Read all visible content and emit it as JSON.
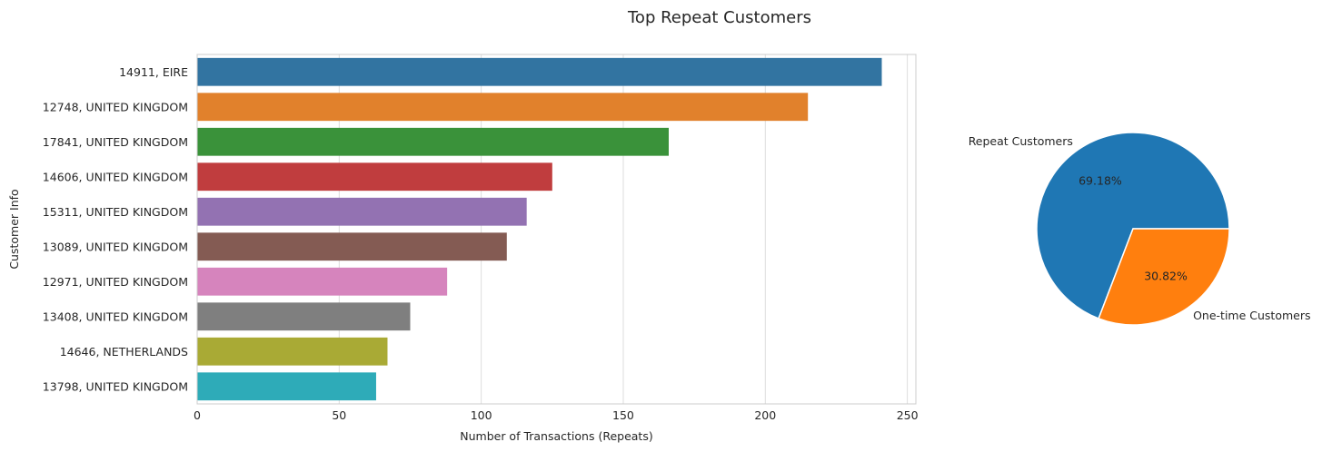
{
  "figure_title": "Top Repeat Customers",
  "chart_data": [
    {
      "type": "bar",
      "orientation": "horizontal",
      "categories": [
        "14911, EIRE",
        "12748, UNITED KINGDOM",
        "17841, UNITED KINGDOM",
        "14606, UNITED KINGDOM",
        "15311, UNITED KINGDOM",
        "13089, UNITED KINGDOM",
        "12971, UNITED KINGDOM",
        "13408, UNITED KINGDOM",
        "14646, NETHERLANDS",
        "13798, UNITED KINGDOM"
      ],
      "values": [
        241,
        215,
        166,
        125,
        116,
        109,
        88,
        75,
        67,
        63
      ],
      "colors": [
        "#3274a1",
        "#e1812c",
        "#3a923a",
        "#c03d3e",
        "#9372b2",
        "#845b53",
        "#d684bd",
        "#7f7f7f",
        "#a9aa35",
        "#2eabb8"
      ],
      "xlabel": "Number of Transactions (Repeats)",
      "ylabel": "Customer Info",
      "xlim": [
        0,
        253
      ],
      "xticks": [
        0,
        50,
        100,
        150,
        200,
        250
      ],
      "grid": true
    },
    {
      "type": "pie",
      "labels": [
        "Repeat Customers",
        "One-time Customers"
      ],
      "values": [
        69.18,
        30.82
      ],
      "value_labels": [
        "69.18%",
        "30.82%"
      ],
      "colors": [
        "#1f77b4",
        "#ff7f0e"
      ],
      "start_angle_deg": 0
    }
  ]
}
